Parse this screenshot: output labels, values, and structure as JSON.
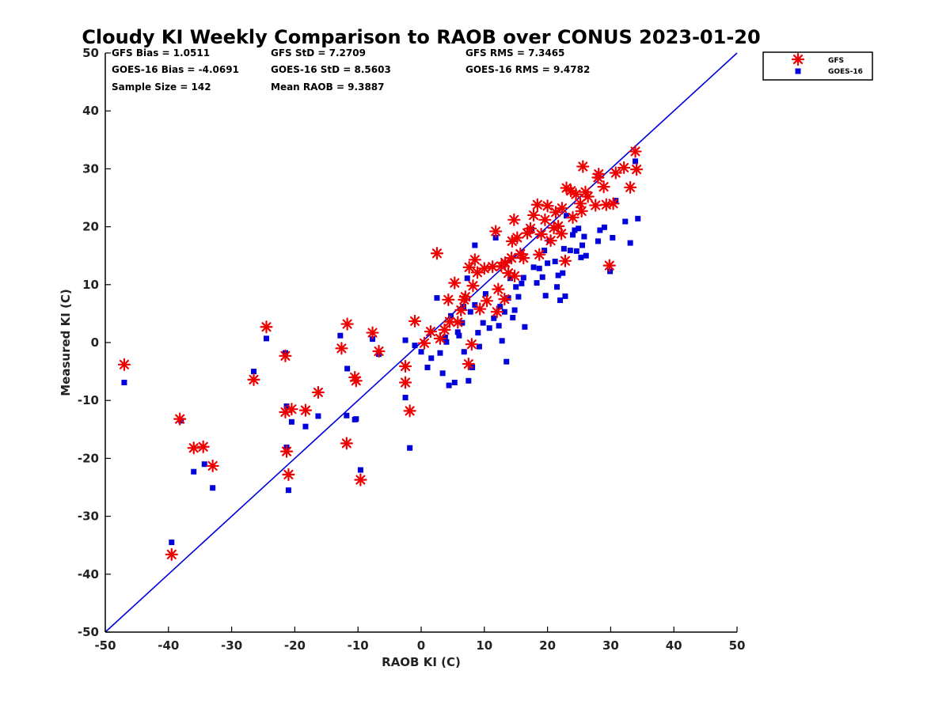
{
  "chart_data": {
    "type": "scatter",
    "title": "Cloudy KI Weekly Comparison to RAOB over CONUS 2023-01-20",
    "xlabel": "RAOB KI (C)",
    "ylabel": "Measured KI (C)",
    "xlim": [
      -50,
      50
    ],
    "ylim": [
      -50,
      50
    ],
    "xticks": [
      -50,
      -40,
      -30,
      -20,
      -10,
      0,
      10,
      20,
      30,
      40,
      50
    ],
    "yticks": [
      -50,
      -40,
      -30,
      -20,
      -10,
      0,
      10,
      20,
      30,
      40,
      50
    ],
    "grid": false,
    "legend_position": "outside-top-right",
    "reference_line": {
      "from": [
        -50,
        -50
      ],
      "to": [
        50,
        50
      ],
      "color": "#0000dd"
    },
    "stats": [
      [
        "GFS Bias = 1.0511",
        "GFS StD = 7.2709",
        "GFS RMS = 7.3465"
      ],
      [
        "GOES-16 Bias = -4.0691",
        "GOES-16 StD = 8.5603",
        "GOES-16 RMS = 9.4782"
      ],
      [
        "Sample Size = 142",
        "Mean RAOB = 9.3887",
        ""
      ]
    ],
    "series": [
      {
        "name": "GFS",
        "marker": "asterisk",
        "color": "#ee0000",
        "points": [
          [
            -47,
            -3.8
          ],
          [
            -38.2,
            -13.2
          ],
          [
            -36,
            -18.2
          ],
          [
            -34.5,
            -18
          ],
          [
            -33,
            -21.3
          ],
          [
            -39.5,
            -36.6
          ],
          [
            -26.5,
            -6.4
          ],
          [
            -24.5,
            2.7
          ],
          [
            -21.5,
            -2.3
          ],
          [
            -21.5,
            -12
          ],
          [
            -21.3,
            -18.8
          ],
          [
            -21,
            -22.8
          ],
          [
            -20.5,
            -11.5
          ],
          [
            -18.3,
            -11.7
          ],
          [
            -16.3,
            -8.6
          ],
          [
            -12.6,
            -1
          ],
          [
            -11.7,
            3.2
          ],
          [
            -11.8,
            -17.4
          ],
          [
            -10.5,
            -6
          ],
          [
            -10.3,
            -6.6
          ],
          [
            -9.6,
            -23.7
          ],
          [
            -7.7,
            1.7
          ],
          [
            -6.7,
            -1.5
          ],
          [
            -2.5,
            -4.1
          ],
          [
            -2.5,
            -6.9
          ],
          [
            -1.8,
            -11.8
          ],
          [
            -1,
            3.7
          ],
          [
            0.5,
            -0.1
          ],
          [
            1.5,
            1.9
          ],
          [
            2.5,
            15.4
          ],
          [
            3,
            0.7
          ],
          [
            3.7,
            2.2
          ],
          [
            4.3,
            7.4
          ],
          [
            4.5,
            3.6
          ],
          [
            5.3,
            10.3
          ],
          [
            5.8,
            3.5
          ],
          [
            6.3,
            5.6
          ],
          [
            6.8,
            7.4
          ],
          [
            7,
            7.9
          ],
          [
            7.6,
            13
          ],
          [
            7.5,
            -3.7
          ],
          [
            8,
            -0.3
          ],
          [
            8.2,
            9.8
          ],
          [
            8.5,
            14.3
          ],
          [
            8.9,
            12.1
          ],
          [
            9.3,
            5.8
          ],
          [
            10,
            12.8
          ],
          [
            10.4,
            7.2
          ],
          [
            11.3,
            13.1
          ],
          [
            11.8,
            19.2
          ],
          [
            12.2,
            9.2
          ],
          [
            12,
            5.3
          ],
          [
            12.7,
            13.2
          ],
          [
            13.3,
            13.8
          ],
          [
            13.2,
            7.5
          ],
          [
            13.8,
            12
          ],
          [
            14.3,
            14.6
          ],
          [
            14.4,
            17.5
          ],
          [
            14.7,
            21.2
          ],
          [
            14.8,
            11.5
          ],
          [
            15.2,
            18.1
          ],
          [
            15.7,
            15.3
          ],
          [
            16.2,
            14.6
          ],
          [
            16.8,
            18.9
          ],
          [
            17.3,
            19.7
          ],
          [
            17.8,
            22
          ],
          [
            18.4,
            23.8
          ],
          [
            18.7,
            15.2
          ],
          [
            19,
            18.7
          ],
          [
            19.6,
            21.2
          ],
          [
            20,
            23.6
          ],
          [
            20.5,
            17.6
          ],
          [
            21,
            19.8
          ],
          [
            21.3,
            22.5
          ],
          [
            21.7,
            20.1
          ],
          [
            22.2,
            18.8
          ],
          [
            22.3,
            23.2
          ],
          [
            22.8,
            14.1
          ],
          [
            23,
            26.7
          ],
          [
            23.7,
            26.2
          ],
          [
            24,
            21.6
          ],
          [
            24.5,
            25.6
          ],
          [
            25.2,
            24
          ],
          [
            25.4,
            22.7
          ],
          [
            25.6,
            30.4
          ],
          [
            26,
            26
          ],
          [
            26.4,
            25.2
          ],
          [
            27.6,
            23.7
          ],
          [
            28,
            28.5
          ],
          [
            28.1,
            29.1
          ],
          [
            28.9,
            26.9
          ],
          [
            29.3,
            23.8
          ],
          [
            29.8,
            13.3
          ],
          [
            30.4,
            24
          ],
          [
            30.8,
            29.3
          ],
          [
            32.1,
            30.2
          ],
          [
            33.1,
            26.8
          ],
          [
            33.9,
            33
          ],
          [
            34.1,
            29.9
          ]
        ]
      },
      {
        "name": "GOES-16",
        "marker": "square",
        "color": "#0000dd",
        "points": [
          [
            -47,
            -6.9
          ],
          [
            -38,
            -13.5
          ],
          [
            -36,
            -22.3
          ],
          [
            -34.3,
            -21
          ],
          [
            -33,
            -25.1
          ],
          [
            -39.5,
            -34.5
          ],
          [
            -26.5,
            -5
          ],
          [
            -24.5,
            0.7
          ],
          [
            -21.5,
            -1.8
          ],
          [
            -21.3,
            -11
          ],
          [
            -21.3,
            -18.1
          ],
          [
            -21,
            -25.5
          ],
          [
            -20.5,
            -13.7
          ],
          [
            -18.3,
            -14.5
          ],
          [
            -16.3,
            -12.7
          ],
          [
            -12.8,
            1.2
          ],
          [
            -11.7,
            -4.5
          ],
          [
            -11.8,
            -12.6
          ],
          [
            -10.5,
            -13.3
          ],
          [
            -10.3,
            -13.2
          ],
          [
            -9.6,
            -22
          ],
          [
            -7.7,
            0.6
          ],
          [
            -6.7,
            -2
          ],
          [
            -2.5,
            0.4
          ],
          [
            -2.5,
            -9.5
          ],
          [
            -1.8,
            -18.2
          ],
          [
            -1,
            -0.5
          ],
          [
            0,
            -1.6
          ],
          [
            1,
            -4.3
          ],
          [
            1.6,
            -2.7
          ],
          [
            2.5,
            7.7
          ],
          [
            3,
            -1.8
          ],
          [
            3.4,
            -5.3
          ],
          [
            3.8,
            0.9
          ],
          [
            4,
            0.1
          ],
          [
            4.4,
            -7.4
          ],
          [
            4.7,
            4.6
          ],
          [
            5.3,
            -6.9
          ],
          [
            5.8,
            1.8
          ],
          [
            6,
            1.2
          ],
          [
            6.5,
            3.4
          ],
          [
            6.7,
            6.2
          ],
          [
            6.8,
            -1.6
          ],
          [
            7.3,
            11.1
          ],
          [
            7.5,
            -6.6
          ],
          [
            7.8,
            5.3
          ],
          [
            8.1,
            -4.3
          ],
          [
            8.5,
            6.5
          ],
          [
            8.5,
            16.8
          ],
          [
            9,
            1.7
          ],
          [
            9.2,
            -0.7
          ],
          [
            9.8,
            3.4
          ],
          [
            10.2,
            8.4
          ],
          [
            10.8,
            2.5
          ],
          [
            11.5,
            4.2
          ],
          [
            11.8,
            18.1
          ],
          [
            12.3,
            2.9
          ],
          [
            12.5,
            6.2
          ],
          [
            12.8,
            0.3
          ],
          [
            13.2,
            5.3
          ],
          [
            13.5,
            -3.3
          ],
          [
            13.8,
            7.7
          ],
          [
            14.1,
            11.1
          ],
          [
            14.5,
            4.3
          ],
          [
            14.8,
            5.6
          ],
          [
            15,
            9.6
          ],
          [
            15.4,
            7.9
          ],
          [
            15.9,
            10.2
          ],
          [
            16.2,
            11.2
          ],
          [
            16.4,
            2.7
          ],
          [
            17.5,
            19.5
          ],
          [
            17.8,
            13
          ],
          [
            18.3,
            10.3
          ],
          [
            18.7,
            12.8
          ],
          [
            19.2,
            11.3
          ],
          [
            19.5,
            15.9
          ],
          [
            19.7,
            8.1
          ],
          [
            20,
            13.7
          ],
          [
            20.3,
            17.6
          ],
          [
            21.2,
            14
          ],
          [
            21.5,
            9.6
          ],
          [
            21.7,
            11.6
          ],
          [
            22,
            7.3
          ],
          [
            22.4,
            12
          ],
          [
            22.6,
            16.2
          ],
          [
            22.8,
            8
          ],
          [
            23,
            21.9
          ],
          [
            23.6,
            15.9
          ],
          [
            24,
            18.6
          ],
          [
            24.3,
            19.4
          ],
          [
            24.6,
            15.8
          ],
          [
            24.9,
            19.7
          ],
          [
            25.3,
            14.7
          ],
          [
            25.5,
            16.8
          ],
          [
            25.8,
            18.3
          ],
          [
            26.1,
            15
          ],
          [
            28,
            17.5
          ],
          [
            28.3,
            19.4
          ],
          [
            29,
            19.9
          ],
          [
            29.9,
            12.3
          ],
          [
            30.3,
            18.1
          ],
          [
            30.8,
            24.5
          ],
          [
            32.3,
            20.9
          ],
          [
            33.1,
            17.2
          ],
          [
            33.9,
            31.3
          ],
          [
            34.3,
            21.4
          ]
        ]
      }
    ]
  }
}
